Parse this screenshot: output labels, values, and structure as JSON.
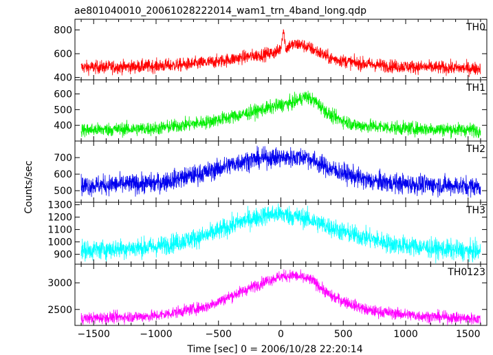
{
  "chart_data": {
    "type": "line",
    "title": "ae801040010_20061028222014_wam1_trn_4band_long.qdp",
    "xlabel": "Time [sec] 0 = 2006/10/28 22:20:14",
    "ylabel": "Counts/sec",
    "xlim": [
      -1650,
      1650
    ],
    "x_ticks": [
      -1500,
      -1000,
      -500,
      0,
      500,
      1000,
      1500
    ],
    "x_tick_labels": [
      "−1500",
      "−1000",
      "−500",
      "0",
      "500",
      "1000",
      "1500"
    ],
    "grid": false,
    "panels": [
      {
        "name": "TH0",
        "color": "#ff0000",
        "ylim": [
          380,
          890
        ],
        "y_ticks": [
          400,
          600,
          800
        ],
        "y_tick_labels": [
          "400",
          "600",
          "800"
        ],
        "noise": 28,
        "x": [
          -1600,
          -1200,
          -800,
          -500,
          -300,
          -100,
          -30,
          0,
          20,
          40,
          70,
          150,
          250,
          400,
          600,
          900,
          1200,
          1600
        ],
        "y": [
          485,
          490,
          505,
          535,
          570,
          600,
          615,
          650,
          810,
          640,
          670,
          680,
          640,
          560,
          520,
          495,
          485,
          475
        ]
      },
      {
        "name": "TH1",
        "color": "#00ee00",
        "ylim": [
          300,
          690
        ],
        "y_ticks": [
          400,
          500,
          600
        ],
        "y_tick_labels": [
          "400",
          "500",
          "600"
        ],
        "noise": 22,
        "x": [
          -1600,
          -1000,
          -600,
          -300,
          0,
          100,
          200,
          280,
          400,
          600,
          1000,
          1600
        ],
        "y": [
          370,
          380,
          420,
          470,
          530,
          545,
          585,
          550,
          460,
          400,
          380,
          370
        ]
      },
      {
        "name": "TH2",
        "color": "#0000ee",
        "ylim": [
          430,
          800
        ],
        "y_ticks": [
          500,
          600,
          700
        ],
        "y_tick_labels": [
          "500",
          "600",
          "700"
        ],
        "noise": 30,
        "x": [
          -1600,
          -1000,
          -600,
          -300,
          -100,
          100,
          200,
          400,
          700,
          1000,
          1600
        ],
        "y": [
          530,
          545,
          610,
          680,
          700,
          700,
          705,
          630,
          560,
          540,
          525
        ]
      },
      {
        "name": "TH3",
        "color": "#00ffff",
        "ylim": [
          820,
          1320
        ],
        "y_ticks": [
          900,
          1000,
          1100,
          1200,
          1300
        ],
        "y_tick_labels": [
          "900",
          "1000",
          "1100",
          "1200",
          "1300"
        ],
        "noise": 40,
        "x": [
          -1600,
          -1000,
          -600,
          -300,
          -100,
          0,
          200,
          500,
          900,
          1300,
          1600
        ],
        "y": [
          930,
          960,
          1050,
          1170,
          1220,
          1225,
          1190,
          1080,
          980,
          940,
          920
        ]
      },
      {
        "name": "TH0123",
        "color": "#ff00ff",
        "ylim": [
          2200,
          3350
        ],
        "y_ticks": [
          2500,
          3000
        ],
        "y_tick_labels": [
          "2500",
          "3000"
        ],
        "noise": 55,
        "x": [
          -1600,
          -1000,
          -600,
          -300,
          -100,
          0,
          100,
          250,
          400,
          700,
          1100,
          1600
        ],
        "y": [
          2330,
          2380,
          2550,
          2850,
          3050,
          3120,
          3140,
          3050,
          2750,
          2480,
          2380,
          2320
        ]
      }
    ]
  }
}
